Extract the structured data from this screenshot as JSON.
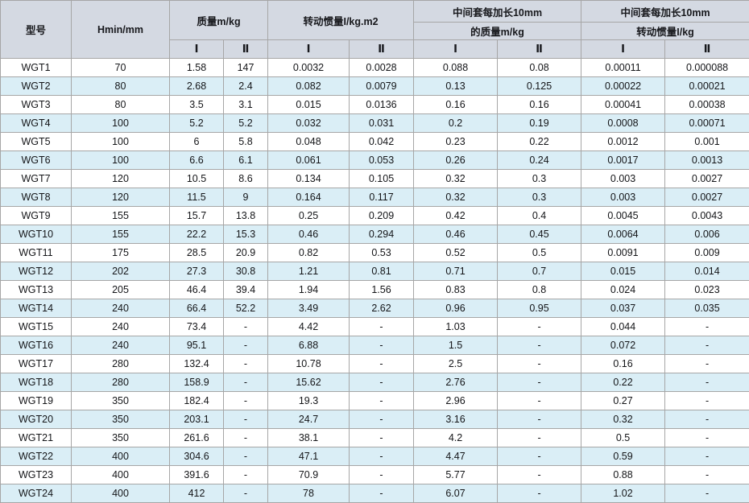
{
  "table": {
    "header": {
      "col_model": "型号",
      "col_hmin": "Hmin/mm",
      "group_mass": "质量m/kg",
      "group_inertia": "转动惯量I/kg.m2",
      "group_ext_mass_line1": "中间套每加长10mm",
      "group_ext_mass_line2": "的质量m/kg",
      "group_ext_inertia_line1": "中间套每加长10mm",
      "group_ext_inertia_line2": "转动惯量I/kg",
      "sub_i": "Ⅰ",
      "sub_ii": "Ⅱ"
    },
    "rows": [
      [
        "WGT1",
        "70",
        "1.58",
        "147",
        "0.0032",
        "0.0028",
        "0.088",
        "0.08",
        "0.00011",
        "0.000088"
      ],
      [
        "WGT2",
        "80",
        "2.68",
        "2.4",
        "0.082",
        "0.0079",
        "0.13",
        "0.125",
        "0.00022",
        "0.00021"
      ],
      [
        "WGT3",
        "80",
        "3.5",
        "3.1",
        "0.015",
        "0.0136",
        "0.16",
        "0.16",
        "0.00041",
        "0.00038"
      ],
      [
        "WGT4",
        "100",
        "5.2",
        "5.2",
        "0.032",
        "0.031",
        "0.2",
        "0.19",
        "0.0008",
        "0.00071"
      ],
      [
        "WGT5",
        "100",
        "6",
        "5.8",
        "0.048",
        "0.042",
        "0.23",
        "0.22",
        "0.0012",
        "0.001"
      ],
      [
        "WGT6",
        "100",
        "6.6",
        "6.1",
        "0.061",
        "0.053",
        "0.26",
        "0.24",
        "0.0017",
        "0.0013"
      ],
      [
        "WGT7",
        "120",
        "10.5",
        "8.6",
        "0.134",
        "0.105",
        "0.32",
        "0.3",
        "0.003",
        "0.0027"
      ],
      [
        "WGT8",
        "120",
        "11.5",
        "9",
        "0.164",
        "0.117",
        "0.32",
        "0.3",
        "0.003",
        "0.0027"
      ],
      [
        "WGT9",
        "155",
        "15.7",
        "13.8",
        "0.25",
        "0.209",
        "0.42",
        "0.4",
        "0.0045",
        "0.0043"
      ],
      [
        "WGT10",
        "155",
        "22.2",
        "15.3",
        "0.46",
        "0.294",
        "0.46",
        "0.45",
        "0.0064",
        "0.006"
      ],
      [
        "WGT11",
        "175",
        "28.5",
        "20.9",
        "0.82",
        "0.53",
        "0.52",
        "0.5",
        "0.0091",
        "0.009"
      ],
      [
        "WGT12",
        "202",
        "27.3",
        "30.8",
        "1.21",
        "0.81",
        "0.71",
        "0.7",
        "0.015",
        "0.014"
      ],
      [
        "WGT13",
        "205",
        "46.4",
        "39.4",
        "1.94",
        "1.56",
        "0.83",
        "0.8",
        "0.024",
        "0.023"
      ],
      [
        "WGT14",
        "240",
        "66.4",
        "52.2",
        "3.49",
        "2.62",
        "0.96",
        "0.95",
        "0.037",
        "0.035"
      ],
      [
        "WGT15",
        "240",
        "73.4",
        "-",
        "4.42",
        "-",
        "1.03",
        "-",
        "0.044",
        "-"
      ],
      [
        "WGT16",
        "240",
        "95.1",
        "-",
        "6.88",
        "-",
        "1.5",
        "-",
        "0.072",
        "-"
      ],
      [
        "WGT17",
        "280",
        "132.4",
        "-",
        "10.78",
        "-",
        "2.5",
        "-",
        "0.16",
        "-"
      ],
      [
        "WGT18",
        "280",
        "158.9",
        "-",
        "15.62",
        "-",
        "2.76",
        "-",
        "0.22",
        "-"
      ],
      [
        "WGT19",
        "350",
        "182.4",
        "-",
        "19.3",
        "-",
        "2.96",
        "-",
        "0.27",
        "-"
      ],
      [
        "WGT20",
        "350",
        "203.1",
        "-",
        "24.7",
        "-",
        "3.16",
        "-",
        "0.32",
        "-"
      ],
      [
        "WGT21",
        "350",
        "261.6",
        "-",
        "38.1",
        "-",
        "4.2",
        "-",
        "0.5",
        "-"
      ],
      [
        "WGT22",
        "400",
        "304.6",
        "-",
        "47.1",
        "-",
        "4.47",
        "-",
        "0.59",
        "-"
      ],
      [
        "WGT23",
        "400",
        "391.6",
        "-",
        "70.9",
        "-",
        "5.77",
        "-",
        "0.88",
        "-"
      ],
      [
        "WGT24",
        "400",
        "412",
        "-",
        "78",
        "-",
        "6.07",
        "-",
        "1.02",
        "-"
      ]
    ]
  },
  "colors": {
    "header_bg": "#d4d9e2",
    "row_alt_bg": "#daeef6",
    "row_bg": "#ffffff",
    "grid_border": "#a6a6a6",
    "text": "#141518"
  }
}
